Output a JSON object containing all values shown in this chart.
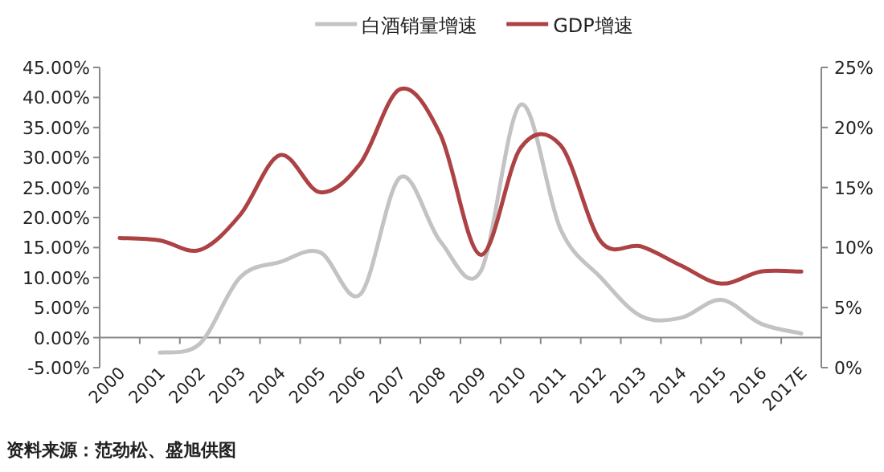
{
  "chart_data": {
    "type": "line",
    "categories": [
      "2000",
      "2001",
      "2002",
      "2003",
      "2004",
      "2005",
      "2006",
      "2007",
      "2008",
      "2009",
      "2010",
      "2011",
      "2012",
      "2013",
      "2014",
      "2015",
      "2016",
      "2017E"
    ],
    "series": [
      {
        "name": "白酒销量增速",
        "color": "#c3c3c3",
        "values": [
          null,
          -2.5,
          -1.0,
          10.0,
          12.6,
          14.2,
          7.2,
          26.7,
          16.0,
          11.0,
          38.8,
          18.0,
          10.0,
          3.6,
          3.3,
          6.3,
          2.3,
          0.7
        ]
      },
      {
        "name": "GDP增速",
        "color": "#ad4245",
        "axis": "y2",
        "values": [
          10.8,
          10.6,
          9.8,
          12.7,
          17.7,
          14.6,
          17.0,
          23.2,
          19.4,
          9.4,
          18.3,
          18.5,
          10.5,
          10.1,
          8.5,
          7.0,
          8.0,
          8.0
        ]
      }
    ],
    "ylim": [
      -5,
      45
    ],
    "yticks": [
      {
        "value": -5,
        "label": "-5.00%"
      },
      {
        "value": 0,
        "label": "0.00%"
      },
      {
        "value": 5,
        "label": "5.00%"
      },
      {
        "value": 10,
        "label": "10.00%"
      },
      {
        "value": 15,
        "label": "15.00%"
      },
      {
        "value": 20,
        "label": "20.00%"
      },
      {
        "value": 25,
        "label": "25.00%"
      },
      {
        "value": 30,
        "label": "30.00%"
      },
      {
        "value": 35,
        "label": "35.00%"
      },
      {
        "value": 40,
        "label": "40.00%"
      },
      {
        "value": 45,
        "label": "45.00%"
      }
    ],
    "y2lim": [
      0,
      25
    ],
    "y2ticks": [
      {
        "value": 0,
        "label": "0%"
      },
      {
        "value": 5,
        "label": "5%"
      },
      {
        "value": 10,
        "label": "10%"
      },
      {
        "value": 15,
        "label": "15%"
      },
      {
        "value": 20,
        "label": "20%"
      },
      {
        "value": 25,
        "label": "25%"
      }
    ],
    "legend": "top",
    "annotations": [
      "资料来源：范劲松、盛旭供图"
    ]
  }
}
